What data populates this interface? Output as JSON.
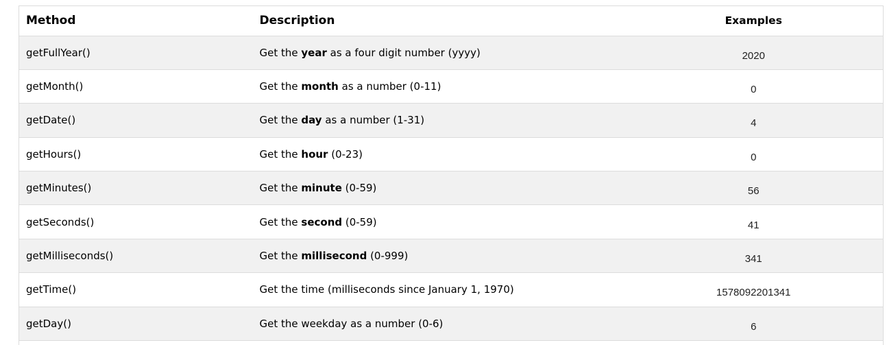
{
  "page": {
    "background_color": "#ffffff"
  },
  "colors": {
    "row_stripe": "#f1f1f1",
    "border": "#dcdcdc",
    "text": "#000000"
  },
  "table": {
    "columns": [
      {
        "label": "Method"
      },
      {
        "label": "Description"
      },
      {
        "label": "Examples"
      }
    ],
    "rows": [
      {
        "method": "getFullYear()",
        "description": [
          {
            "text": "Get the "
          },
          {
            "text": "year",
            "bold": true
          },
          {
            "text": " as a four digit number (yyyy)"
          }
        ],
        "example": "2020"
      },
      {
        "method": "getMonth()",
        "description": [
          {
            "text": "Get the "
          },
          {
            "text": "month",
            "bold": true
          },
          {
            "text": " as a number (0-11)"
          }
        ],
        "example": "0"
      },
      {
        "method": "getDate()",
        "description": [
          {
            "text": "Get the "
          },
          {
            "text": "day",
            "bold": true
          },
          {
            "text": " as a number (1-31)"
          }
        ],
        "example": "4"
      },
      {
        "method": "getHours()",
        "description": [
          {
            "text": "Get the "
          },
          {
            "text": "hour",
            "bold": true
          },
          {
            "text": " (0-23)"
          }
        ],
        "example": "0"
      },
      {
        "method": "getMinutes()",
        "description": [
          {
            "text": "Get the "
          },
          {
            "text": "minute",
            "bold": true
          },
          {
            "text": " (0-59)"
          }
        ],
        "example": "56"
      },
      {
        "method": "getSeconds()",
        "description": [
          {
            "text": "Get the "
          },
          {
            "text": "second",
            "bold": true
          },
          {
            "text": " (0-59)"
          }
        ],
        "example": "41"
      },
      {
        "method": "getMilliseconds()",
        "description": [
          {
            "text": "Get the "
          },
          {
            "text": "millisecond",
            "bold": true
          },
          {
            "text": " (0-999)"
          }
        ],
        "example": "341"
      },
      {
        "method": "getTime()",
        "description": [
          {
            "text": "Get the time (milliseconds since January 1, 1970)"
          }
        ],
        "example": "1578092201341"
      },
      {
        "method": "getDay()",
        "description": [
          {
            "text": "Get the weekday as a number (0-6)"
          }
        ],
        "example": "6"
      }
    ]
  }
}
